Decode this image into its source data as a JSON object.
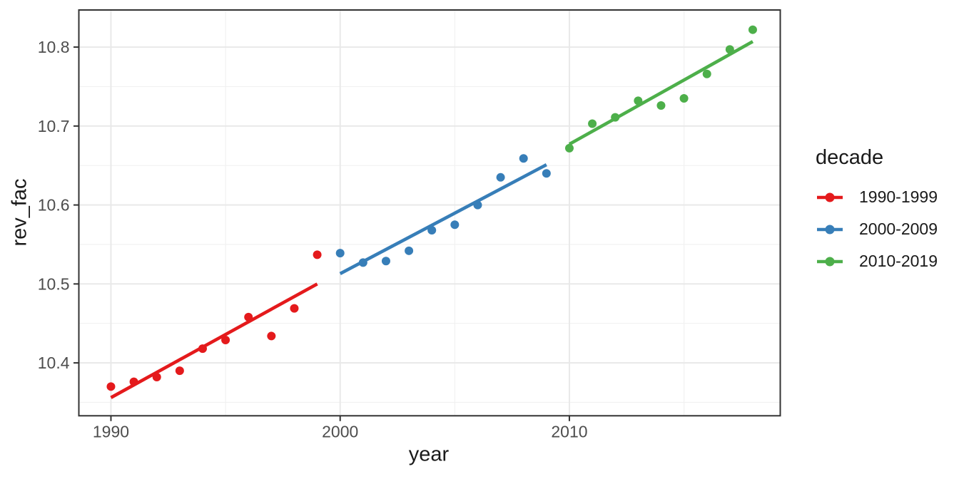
{
  "style": {
    "panel_bg": "#FFFFFF",
    "panel_border": "#333333",
    "grid_major": "#E8E8E8",
    "grid_minor": "#F1F1F1",
    "tick_color": "#333333",
    "axis_text_color": "#4D4D4D",
    "title_text_color": "#1A1A1A"
  },
  "chart_data": {
    "type": "scatter",
    "title": "",
    "xlabel": "year",
    "ylabel": "rev_fac",
    "grid": "on",
    "xlim": [
      1988.6,
      2019.2
    ],
    "ylim": [
      10.333,
      10.847
    ],
    "x_ticks": {
      "values": [
        1990,
        2000,
        2010
      ],
      "labels": [
        "1990",
        "2000",
        "2010"
      ]
    },
    "y_ticks": {
      "values": [
        10.4,
        10.5,
        10.6,
        10.7,
        10.8
      ],
      "labels": [
        "10.4",
        "10.5",
        "10.6",
        "10.7",
        "10.8"
      ]
    },
    "x_minor_ticks": [
      1995,
      2005,
      2015
    ],
    "y_minor_ticks": [
      10.35,
      10.45,
      10.55,
      10.65,
      10.75
    ],
    "legend": {
      "title": "decade",
      "position": "right"
    },
    "series": [
      {
        "name": "1990-1999",
        "color": "#E41A1C",
        "x": [
          1990,
          1991,
          1992,
          1993,
          1994,
          1995,
          1996,
          1997,
          1998,
          1999
        ],
        "y": [
          10.37,
          10.376,
          10.382,
          10.39,
          10.418,
          10.429,
          10.458,
          10.434,
          10.469,
          10.537
        ],
        "trend": {
          "x1": 1990,
          "y1": 10.356,
          "x2": 1999,
          "y2": 10.5
        }
      },
      {
        "name": "2000-2009",
        "color": "#377EB8",
        "x": [
          2000,
          2001,
          2002,
          2003,
          2004,
          2005,
          2006,
          2007,
          2008,
          2009
        ],
        "y": [
          10.539,
          10.527,
          10.529,
          10.542,
          10.568,
          10.575,
          10.6,
          10.635,
          10.659,
          10.64
        ],
        "trend": {
          "x1": 2000,
          "y1": 10.513,
          "x2": 2009,
          "y2": 10.651
        }
      },
      {
        "name": "2010-2019",
        "color": "#4DAF4A",
        "x": [
          2010,
          2011,
          2012,
          2013,
          2014,
          2015,
          2016,
          2017,
          2018
        ],
        "y": [
          10.672,
          10.703,
          10.711,
          10.732,
          10.726,
          10.735,
          10.766,
          10.797,
          10.822
        ],
        "trend": {
          "x1": 2010,
          "y1": 10.677,
          "x2": 2018,
          "y2": 10.807
        }
      }
    ]
  }
}
